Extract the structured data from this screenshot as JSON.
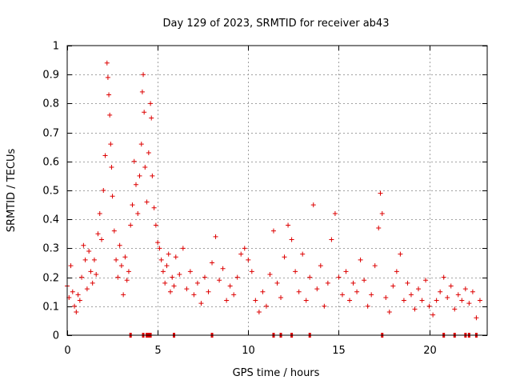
{
  "chart_data": {
    "type": "scatter",
    "title": "Day 129 of 2023, SRMTID for receiver ab43",
    "xlabel": "GPS time / hours",
    "ylabel": "SRMTID / TECUs",
    "xlim": [
      0,
      23.2
    ],
    "ylim": [
      0,
      1
    ],
    "xticks": [
      0,
      5,
      10,
      15,
      20
    ],
    "xtick_labels": [
      "0",
      "5",
      "10",
      "15",
      "20"
    ],
    "yticks": [
      0,
      0.1,
      0.2,
      0.3,
      0.4,
      0.5,
      0.6,
      0.7,
      0.8,
      0.9,
      1
    ],
    "ytick_labels": [
      "0",
      "0.1",
      "0.2",
      "0.3",
      "0.4",
      "0.5",
      "0.6",
      "0.7",
      "0.8",
      "0.9",
      "1"
    ],
    "grid": true,
    "marker": "+",
    "color": "#dd0000",
    "series": [
      {
        "name": "SRMTID",
        "points": [
          [
            0.0,
            0.17
          ],
          [
            0.1,
            0.13
          ],
          [
            0.2,
            0.24
          ],
          [
            0.3,
            0.15
          ],
          [
            0.4,
            0.1
          ],
          [
            0.5,
            0.08
          ],
          [
            0.6,
            0.14
          ],
          [
            0.7,
            0.12
          ],
          [
            0.8,
            0.2
          ],
          [
            0.9,
            0.31
          ],
          [
            1.0,
            0.26
          ],
          [
            1.1,
            0.16
          ],
          [
            1.2,
            0.29
          ],
          [
            1.3,
            0.22
          ],
          [
            1.4,
            0.18
          ],
          [
            1.5,
            0.26
          ],
          [
            1.6,
            0.21
          ],
          [
            1.7,
            0.35
          ],
          [
            1.8,
            0.42
          ],
          [
            1.9,
            0.33
          ],
          [
            2.0,
            0.5
          ],
          [
            2.1,
            0.62
          ],
          [
            2.2,
            0.94
          ],
          [
            2.25,
            0.89
          ],
          [
            2.3,
            0.83
          ],
          [
            2.35,
            0.76
          ],
          [
            2.4,
            0.66
          ],
          [
            2.45,
            0.58
          ],
          [
            2.5,
            0.48
          ],
          [
            2.6,
            0.36
          ],
          [
            2.7,
            0.26
          ],
          [
            2.8,
            0.2
          ],
          [
            2.9,
            0.31
          ],
          [
            3.0,
            0.24
          ],
          [
            3.1,
            0.14
          ],
          [
            3.2,
            0.27
          ],
          [
            3.3,
            0.19
          ],
          [
            3.4,
            0.22
          ],
          [
            3.5,
            0.38
          ],
          [
            3.6,
            0.45
          ],
          [
            3.7,
            0.6
          ],
          [
            3.8,
            0.52
          ],
          [
            3.9,
            0.42
          ],
          [
            4.0,
            0.55
          ],
          [
            4.1,
            0.66
          ],
          [
            4.15,
            0.84
          ],
          [
            4.2,
            0.9
          ],
          [
            4.25,
            0.77
          ],
          [
            4.3,
            0.58
          ],
          [
            4.4,
            0.46
          ],
          [
            4.5,
            0.63
          ],
          [
            4.6,
            0.8
          ],
          [
            4.65,
            0.75
          ],
          [
            4.7,
            0.55
          ],
          [
            4.8,
            0.44
          ],
          [
            4.9,
            0.38
          ],
          [
            5.0,
            0.32
          ],
          [
            5.1,
            0.3
          ],
          [
            5.2,
            0.26
          ],
          [
            5.3,
            0.22
          ],
          [
            5.4,
            0.18
          ],
          [
            5.5,
            0.24
          ],
          [
            5.6,
            0.28
          ],
          [
            5.7,
            0.15
          ],
          [
            5.8,
            0.2
          ],
          [
            5.9,
            0.17
          ],
          [
            6.0,
            0.27
          ],
          [
            6.2,
            0.21
          ],
          [
            6.4,
            0.3
          ],
          [
            6.6,
            0.16
          ],
          [
            6.8,
            0.22
          ],
          [
            7.0,
            0.14
          ],
          [
            7.2,
            0.18
          ],
          [
            7.4,
            0.11
          ],
          [
            7.6,
            0.2
          ],
          [
            7.8,
            0.15
          ],
          [
            8.0,
            0.25
          ],
          [
            8.2,
            0.34
          ],
          [
            8.4,
            0.19
          ],
          [
            8.6,
            0.23
          ],
          [
            8.8,
            0.12
          ],
          [
            9.0,
            0.17
          ],
          [
            9.2,
            0.14
          ],
          [
            9.4,
            0.2
          ],
          [
            9.6,
            0.28
          ],
          [
            9.8,
            0.3
          ],
          [
            10.0,
            0.26
          ],
          [
            10.2,
            0.22
          ],
          [
            10.4,
            0.12
          ],
          [
            10.6,
            0.08
          ],
          [
            10.8,
            0.15
          ],
          [
            11.0,
            0.1
          ],
          [
            11.2,
            0.21
          ],
          [
            11.4,
            0.36
          ],
          [
            11.6,
            0.18
          ],
          [
            11.8,
            0.13
          ],
          [
            12.0,
            0.27
          ],
          [
            12.2,
            0.38
          ],
          [
            12.4,
            0.33
          ],
          [
            12.6,
            0.22
          ],
          [
            12.8,
            0.15
          ],
          [
            13.0,
            0.28
          ],
          [
            13.2,
            0.12
          ],
          [
            13.4,
            0.2
          ],
          [
            13.6,
            0.45
          ],
          [
            13.8,
            0.16
          ],
          [
            14.0,
            0.24
          ],
          [
            14.2,
            0.1
          ],
          [
            14.4,
            0.18
          ],
          [
            14.6,
            0.33
          ],
          [
            14.8,
            0.42
          ],
          [
            15.0,
            0.2
          ],
          [
            15.2,
            0.14
          ],
          [
            15.4,
            0.22
          ],
          [
            15.6,
            0.12
          ],
          [
            15.8,
            0.18
          ],
          [
            16.0,
            0.15
          ],
          [
            16.2,
            0.26
          ],
          [
            16.4,
            0.19
          ],
          [
            16.6,
            0.1
          ],
          [
            16.8,
            0.14
          ],
          [
            17.0,
            0.24
          ],
          [
            17.2,
            0.37
          ],
          [
            17.3,
            0.49
          ],
          [
            17.4,
            0.42
          ],
          [
            17.6,
            0.13
          ],
          [
            17.8,
            0.08
          ],
          [
            18.0,
            0.17
          ],
          [
            18.2,
            0.22
          ],
          [
            18.4,
            0.28
          ],
          [
            18.6,
            0.12
          ],
          [
            18.8,
            0.18
          ],
          [
            19.0,
            0.14
          ],
          [
            19.2,
            0.09
          ],
          [
            19.4,
            0.16
          ],
          [
            19.6,
            0.12
          ],
          [
            19.8,
            0.19
          ],
          [
            20.0,
            0.1
          ],
          [
            20.2,
            0.07
          ],
          [
            20.4,
            0.12
          ],
          [
            20.6,
            0.15
          ],
          [
            20.8,
            0.2
          ],
          [
            21.0,
            0.13
          ],
          [
            21.2,
            0.17
          ],
          [
            21.4,
            0.09
          ],
          [
            21.6,
            0.14
          ],
          [
            21.8,
            0.12
          ],
          [
            22.0,
            0.16
          ],
          [
            22.2,
            0.11
          ],
          [
            22.4,
            0.15
          ],
          [
            22.6,
            0.06
          ],
          [
            22.8,
            0.12
          ]
        ]
      }
    ],
    "zero_markers_x": [
      3.5,
      4.2,
      4.4,
      4.5,
      4.6,
      5.9,
      8.0,
      11.4,
      11.8,
      12.4,
      13.4,
      17.4,
      20.8,
      21.4,
      22.0,
      22.2,
      22.6
    ]
  }
}
